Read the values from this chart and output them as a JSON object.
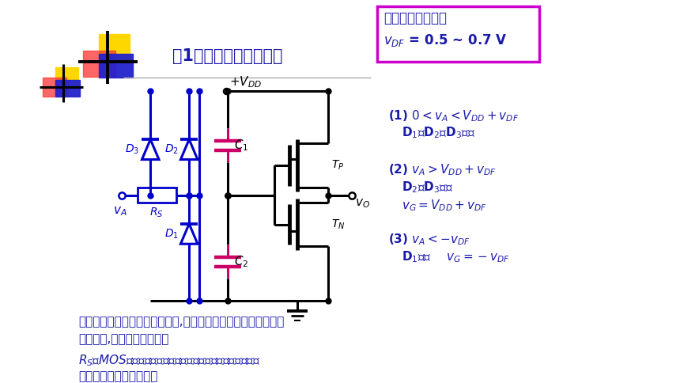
{
  "bg_color": "#ffffff",
  "title_text": "（1）输入端保护电路：",
  "title_color": "#1a1aaa",
  "box_text1": "二极管导通电压：",
  "box_text2": "$v_{DF}$ = 0.5 ~ 0.7 V",
  "box_color": "#cc00cc",
  "circuit_color_blue": "#0000cc",
  "circuit_color_black": "#000000",
  "circuit_color_red": "#cc0066",
  "annotation1": "(1) $0 < v_A < V_{DD} + v_{DF}$",
  "annotation1b": "D$_1$、D$_2$、D$_3$截止",
  "annotation2": "(2) $v_A > V_{DD} + v_{DF}$",
  "annotation2b": "D$_2$、D$_3$导通",
  "annotation2c": "$v_G = V_{DD} + v_{DF}$",
  "annotation3": "(3) $v_A < -v_{DF}$",
  "annotation3b": "D$_1$导通    $v_G = -v_{DF}$",
  "vdd_label": "$+V_{DD}$",
  "vO_label": "$v_O$",
  "vA_label": "$v_A$",
  "RS_label": "$R_S$",
  "TP_label": "$T_P$",
  "TN_label": "$T_N$",
  "C1_label": "$C_1$",
  "C2_label": "$C_2$",
  "D1_label": "$D_1$",
  "D2_label": "$D_2$",
  "D3_label": "$D_3$",
  "caption1": "当输入电压不在正常电压范围时,二极管导通，限制了电容两端电",
  "caption1b": "压的增加,保护了输入电路。",
  "caption2": "$R_S$和MOS管的栅极电容组成积分网络，使输入信号的过冲电",
  "caption2b": "压延迟且衰减后到栅极。"
}
